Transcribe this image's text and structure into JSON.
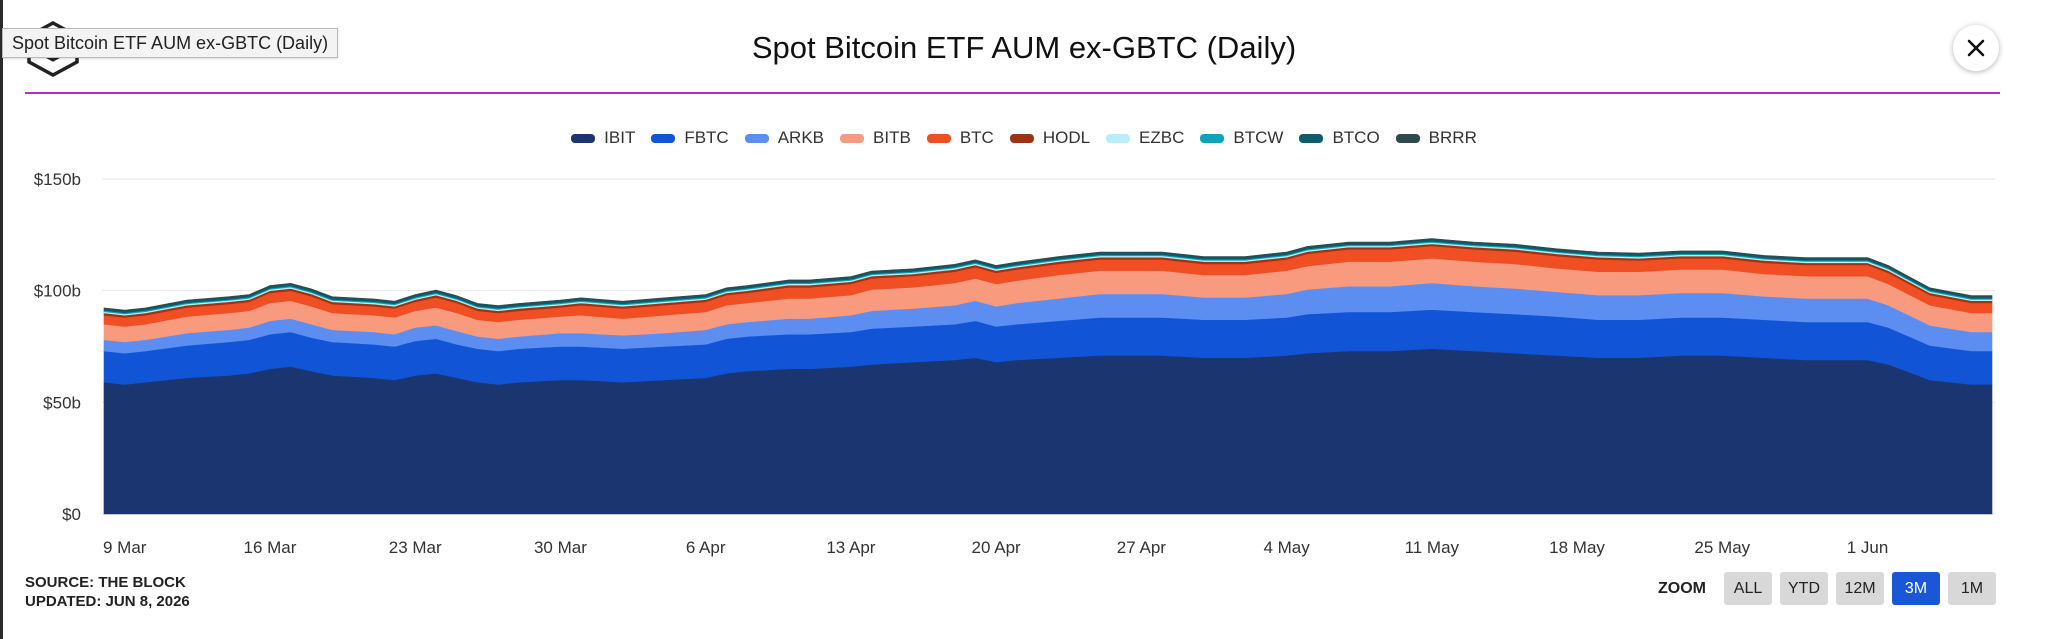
{
  "tooltip": "Spot Bitcoin ETF AUM ex-GBTC (Daily)",
  "footer": {
    "source": "SOURCE: THE BLOCK",
    "updated": "UPDATED: JUN 8, 2026"
  },
  "zoom": {
    "label": "ZOOM",
    "buttons": [
      "ALL",
      "YTD",
      "12M",
      "3M",
      "1M"
    ],
    "active": "3M"
  },
  "chart_data": {
    "type": "area",
    "stacked": true,
    "title": "Spot Bitcoin ETF AUM ex-GBTC (Daily)",
    "xlabel": "",
    "ylabel": "",
    "ylim": [
      0,
      150
    ],
    "y_ticks": [
      "$0",
      "$50b",
      "$100b",
      "$150b"
    ],
    "y_tick_values": [
      0,
      50,
      100,
      150
    ],
    "x_ticks": [
      "9 Mar",
      "16 Mar",
      "23 Mar",
      "30 Mar",
      "6 Apr",
      "13 Apr",
      "20 Apr",
      "27 Apr",
      "4 May",
      "11 May",
      "18 May",
      "25 May",
      "1 Jun"
    ],
    "grid": true,
    "legend_position": "top-center",
    "x_dates": [
      "Mar 8",
      "Mar 9",
      "Mar 10",
      "Mar 12",
      "Mar 14",
      "Mar 15",
      "Mar 16",
      "Mar 17",
      "Mar 18",
      "Mar 19",
      "Mar 21",
      "Mar 22",
      "Mar 23",
      "Mar 24",
      "Mar 25",
      "Mar 26",
      "Mar 27",
      "Mar 28",
      "Mar 30",
      "Mar 31",
      "Apr 2",
      "Apr 4",
      "Apr 6",
      "Apr 7",
      "Apr 8",
      "Apr 10",
      "Apr 11",
      "Apr 13",
      "Apr 14",
      "Apr 16",
      "Apr 18",
      "Apr 19",
      "Apr 20",
      "Apr 21",
      "Apr 23",
      "Apr 25",
      "Apr 27",
      "Apr 28",
      "Apr 30",
      "May 2",
      "May 4",
      "May 5",
      "May 7",
      "May 9",
      "May 11",
      "May 13",
      "May 15",
      "May 17",
      "May 19",
      "May 21",
      "May 23",
      "May 25",
      "May 27",
      "May 29",
      "May 31",
      "Jun 1",
      "Jun 2",
      "Jun 4",
      "Jun 6",
      "Jun 7"
    ],
    "series": [
      {
        "name": "IBIT",
        "color": "#1a3570",
        "values": [
          59,
          58,
          59,
          61,
          62,
          63,
          65,
          66,
          64,
          62,
          61,
          60,
          62,
          63,
          61,
          59,
          58,
          59,
          60,
          60,
          59,
          60,
          61,
          63,
          64,
          65,
          65,
          66,
          67,
          68,
          69,
          70,
          68,
          69,
          70,
          71,
          71,
          71,
          70,
          70,
          71,
          72,
          73,
          73,
          74,
          73,
          72,
          71,
          70,
          70,
          71,
          71,
          70,
          69,
          69,
          69,
          67,
          60,
          58,
          58
        ]
      },
      {
        "name": "FBTC",
        "color": "#1155d6",
        "values": [
          14,
          14,
          14,
          14.5,
          15,
          15,
          15.5,
          15.5,
          15,
          15,
          15,
          15,
          15.5,
          15.5,
          15,
          15,
          15,
          15,
          15,
          15,
          15,
          15,
          15,
          15.5,
          15.5,
          15.5,
          15.5,
          15.5,
          16,
          16,
          16,
          16.5,
          16,
          16,
          16.5,
          17,
          17,
          17,
          17,
          17,
          17,
          17.5,
          17.5,
          17.5,
          17.5,
          17.5,
          17.5,
          17.5,
          17,
          17,
          17,
          17,
          17,
          17,
          17,
          17,
          16.5,
          15.5,
          15,
          15
        ]
      },
      {
        "name": "ARKB",
        "color": "#5b8ef0",
        "values": [
          5,
          5,
          5,
          5.5,
          5.5,
          5.5,
          6,
          6,
          6,
          5.5,
          5.5,
          5.5,
          6,
          6,
          6,
          5.5,
          5.5,
          5.5,
          6,
          6,
          6,
          6,
          6.5,
          6.5,
          6.5,
          7,
          7,
          7.5,
          8,
          8,
          8.5,
          9,
          9,
          9.5,
          10,
          10.5,
          10.5,
          10.5,
          10,
          10,
          10.5,
          11,
          11.5,
          11.5,
          12,
          11.5,
          11.5,
          11,
          11,
          11,
          11,
          11,
          10.5,
          10.5,
          10.5,
          10.5,
          10,
          9,
          8.5,
          8.5
        ]
      },
      {
        "name": "BITB",
        "color": "#f89a7e",
        "values": [
          7,
          7,
          7,
          7.5,
          7.5,
          7.5,
          8,
          8,
          8,
          7.5,
          7.5,
          7.5,
          7.5,
          8,
          8,
          7.5,
          7.5,
          7.5,
          7.5,
          8,
          7.5,
          8,
          8,
          8.5,
          8.5,
          9,
          9,
          9,
          9.5,
          9.5,
          10,
          10,
          10,
          10,
          10.5,
          10.5,
          10.5,
          10.5,
          10,
          10,
          10.5,
          10.5,
          11,
          11,
          11,
          11,
          11,
          10.5,
          10.5,
          10.5,
          10.5,
          10.5,
          10,
          10,
          10,
          10,
          9.5,
          9,
          8.5,
          8.5
        ]
      },
      {
        "name": "BTC",
        "color": "#f04e23",
        "values": [
          4,
          4,
          4,
          4,
          4,
          4,
          4.5,
          4.5,
          4.5,
          4,
          4,
          4,
          4,
          4.5,
          4.5,
          4,
          4,
          4,
          4,
          4.5,
          4.5,
          4.5,
          4.5,
          4.5,
          4.5,
          5,
          5,
          5,
          5,
          5,
          5,
          5,
          5,
          5,
          5,
          5,
          5,
          5,
          5,
          5,
          5,
          5.5,
          5.5,
          5.5,
          5.5,
          5.5,
          5.5,
          5.5,
          5.5,
          5,
          5,
          5,
          5,
          5,
          5,
          5,
          5,
          4.5,
          4.5,
          4.5
        ]
      },
      {
        "name": "HODL",
        "color": "#a03214",
        "values": [
          1,
          1,
          1,
          1,
          1,
          1,
          1,
          1,
          1,
          1,
          1,
          1,
          1,
          1,
          1,
          1,
          1,
          1,
          1,
          1,
          1,
          1,
          1,
          1,
          1,
          1,
          1,
          1,
          1,
          1,
          1,
          1,
          1,
          1,
          1,
          1,
          1,
          1,
          1,
          1,
          1,
          1,
          1,
          1,
          1,
          1,
          1,
          1,
          1,
          1,
          1,
          1,
          1,
          1,
          1,
          1,
          1,
          1,
          1,
          1
        ]
      },
      {
        "name": "EZBC",
        "color": "#b8eef7",
        "values": [
          0.6,
          0.6,
          0.6,
          0.6,
          0.6,
          0.6,
          0.6,
          0.6,
          0.6,
          0.6,
          0.6,
          0.6,
          0.6,
          0.6,
          0.6,
          0.6,
          0.6,
          0.6,
          0.6,
          0.6,
          0.6,
          0.6,
          0.6,
          0.6,
          0.6,
          0.6,
          0.6,
          0.6,
          0.6,
          0.6,
          0.6,
          0.6,
          0.6,
          0.6,
          0.6,
          0.6,
          0.6,
          0.6,
          0.6,
          0.6,
          0.6,
          0.6,
          0.6,
          0.6,
          0.6,
          0.6,
          0.6,
          0.6,
          0.6,
          0.6,
          0.6,
          0.6,
          0.6,
          0.6,
          0.6,
          0.6,
          0.6,
          0.6,
          0.6,
          0.6
        ]
      },
      {
        "name": "BTCW",
        "color": "#0aa3b8",
        "values": [
          0.5,
          0.5,
          0.5,
          0.5,
          0.5,
          0.5,
          0.5,
          0.5,
          0.5,
          0.5,
          0.5,
          0.5,
          0.5,
          0.5,
          0.5,
          0.5,
          0.5,
          0.5,
          0.5,
          0.5,
          0.5,
          0.5,
          0.5,
          0.5,
          0.5,
          0.5,
          0.5,
          0.5,
          0.5,
          0.5,
          0.5,
          0.5,
          0.5,
          0.5,
          0.5,
          0.5,
          0.5,
          0.5,
          0.5,
          0.5,
          0.5,
          0.5,
          0.5,
          0.5,
          0.5,
          0.5,
          0.5,
          0.5,
          0.5,
          0.5,
          0.5,
          0.5,
          0.5,
          0.5,
          0.5,
          0.5,
          0.5,
          0.5,
          0.5,
          0.5
        ]
      },
      {
        "name": "BTCO",
        "color": "#0b5d6b",
        "values": [
          0.8,
          0.8,
          0.8,
          0.8,
          0.8,
          0.8,
          0.8,
          0.8,
          0.8,
          0.8,
          0.8,
          0.8,
          0.8,
          0.8,
          0.8,
          0.8,
          0.8,
          0.8,
          0.8,
          0.8,
          0.8,
          0.8,
          0.8,
          0.8,
          0.8,
          0.8,
          0.8,
          0.8,
          0.8,
          0.8,
          0.8,
          0.8,
          0.8,
          0.8,
          0.8,
          0.8,
          0.8,
          0.8,
          0.8,
          0.8,
          0.8,
          0.8,
          0.8,
          0.8,
          0.8,
          0.8,
          0.8,
          0.8,
          0.8,
          0.8,
          0.8,
          0.8,
          0.8,
          0.8,
          0.8,
          0.8,
          0.8,
          0.8,
          0.8,
          0.8
        ]
      },
      {
        "name": "BRRR",
        "color": "#2d4a4f",
        "values": [
          0.4,
          0.4,
          0.4,
          0.4,
          0.4,
          0.4,
          0.4,
          0.4,
          0.4,
          0.4,
          0.4,
          0.4,
          0.4,
          0.4,
          0.4,
          0.4,
          0.4,
          0.4,
          0.4,
          0.4,
          0.4,
          0.4,
          0.4,
          0.4,
          0.4,
          0.4,
          0.4,
          0.4,
          0.4,
          0.4,
          0.4,
          0.4,
          0.4,
          0.4,
          0.4,
          0.4,
          0.4,
          0.4,
          0.4,
          0.4,
          0.4,
          0.4,
          0.4,
          0.4,
          0.4,
          0.4,
          0.4,
          0.4,
          0.4,
          0.4,
          0.4,
          0.4,
          0.4,
          0.4,
          0.4,
          0.4,
          0.4,
          0.4,
          0.4,
          0.4
        ]
      }
    ]
  }
}
